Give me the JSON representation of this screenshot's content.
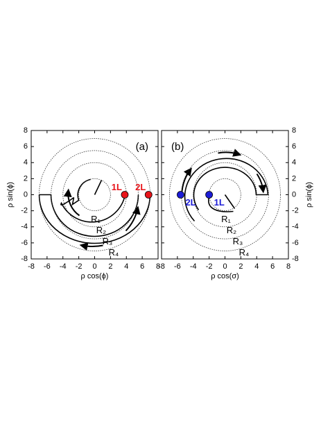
{
  "chart_data": [
    {
      "type": "scatter",
      "panel_label": "(a)",
      "x_label": "ρ cos(ϕ)",
      "y_label": "ρ sin(ϕ)",
      "y_axis_side": "left",
      "xlim": [
        -8,
        8
      ],
      "ylim": [
        -8,
        8
      ],
      "xticks": [
        -8,
        -6,
        -4,
        -2,
        0,
        2,
        4,
        6,
        8
      ],
      "yticks": [
        -8,
        -6,
        -4,
        -2,
        0,
        2,
        4,
        6,
        8
      ],
      "rings": [
        2,
        4,
        5.5,
        7
      ],
      "annotations": [
        "R₁",
        "R₂",
        "R₃",
        "R₄"
      ],
      "series": [
        {
          "name": "1L",
          "color": "#e8141a",
          "x": [
            3.8
          ],
          "values": [
            0
          ]
        },
        {
          "name": "2L",
          "color": "#e8141a",
          "x": [
            6.8
          ],
          "values": [
            0
          ]
        }
      ]
    },
    {
      "type": "scatter",
      "panel_label": "(b)",
      "x_label": "ρ cos(σ)",
      "y_label": "ρ sin(ϕ)",
      "y_axis_side": "right",
      "xlim": [
        -8,
        8
      ],
      "ylim": [
        -8,
        8
      ],
      "xticks": [
        -8,
        -6,
        -4,
        -2,
        0,
        2,
        4,
        6,
        8
      ],
      "yticks": [
        -8,
        -6,
        -4,
        -2,
        0,
        2,
        4,
        6,
        8
      ],
      "rings": [
        2,
        4,
        5.5,
        7
      ],
      "annotations": [
        "R₁",
        "R₂",
        "R₃",
        "R₄"
      ],
      "series": [
        {
          "name": "1L",
          "color": "#1c1cd6",
          "x": [
            -2
          ],
          "values": [
            0
          ]
        },
        {
          "name": "2L",
          "color": "#1c1cd6",
          "x": [
            -5.6
          ],
          "values": [
            0
          ]
        }
      ]
    }
  ]
}
